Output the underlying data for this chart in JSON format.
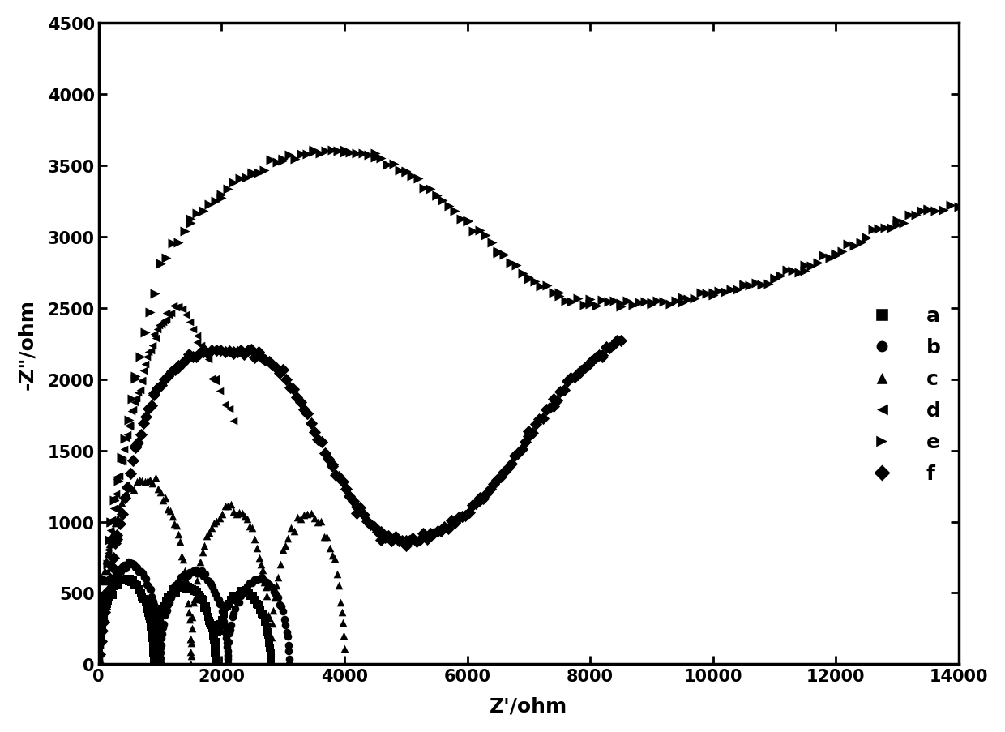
{
  "xlabel": "Z'/ohm",
  "ylabel": "-Z\"/ohm",
  "xlim": [
    0,
    14000
  ],
  "ylim": [
    0,
    4500
  ],
  "xticks": [
    0,
    2000,
    4000,
    6000,
    8000,
    10000,
    12000,
    14000
  ],
  "yticks": [
    0,
    500,
    1000,
    1500,
    2000,
    2500,
    3000,
    3500,
    4000,
    4500
  ],
  "background_color": "#ffffff",
  "axis_fontsize": 18,
  "tick_fontsize": 15,
  "legend_fontsize": 18
}
